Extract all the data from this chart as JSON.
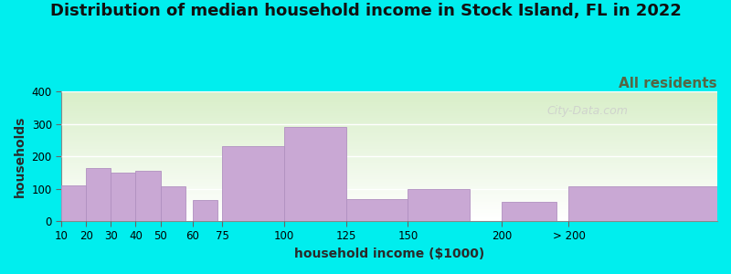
{
  "title": "Distribution of median household income in Stock Island, FL in 2022",
  "subtitle": "All residents",
  "xlabel": "household income ($1000)",
  "ylabel": "households",
  "background_fig": "#00EEEE",
  "bar_color": "#C9A8D4",
  "bar_edge_color": "#B090C0",
  "categories": [
    "10",
    "20",
    "30",
    "40",
    "50",
    "60",
    "75",
    "100",
    "125",
    "150",
    "200",
    "> 200"
  ],
  "values": [
    110,
    163,
    150,
    155,
    107,
    65,
    230,
    290,
    68,
    100,
    60,
    108
  ],
  "ylim": [
    0,
    400
  ],
  "yticks": [
    0,
    100,
    200,
    300,
    400
  ],
  "title_fontsize": 13,
  "subtitle_fontsize": 11,
  "axis_label_fontsize": 10,
  "watermark_text": "City-Data.com",
  "plot_bg_top": "#D8EEC8",
  "plot_bg_bottom": "#FFFFFF"
}
